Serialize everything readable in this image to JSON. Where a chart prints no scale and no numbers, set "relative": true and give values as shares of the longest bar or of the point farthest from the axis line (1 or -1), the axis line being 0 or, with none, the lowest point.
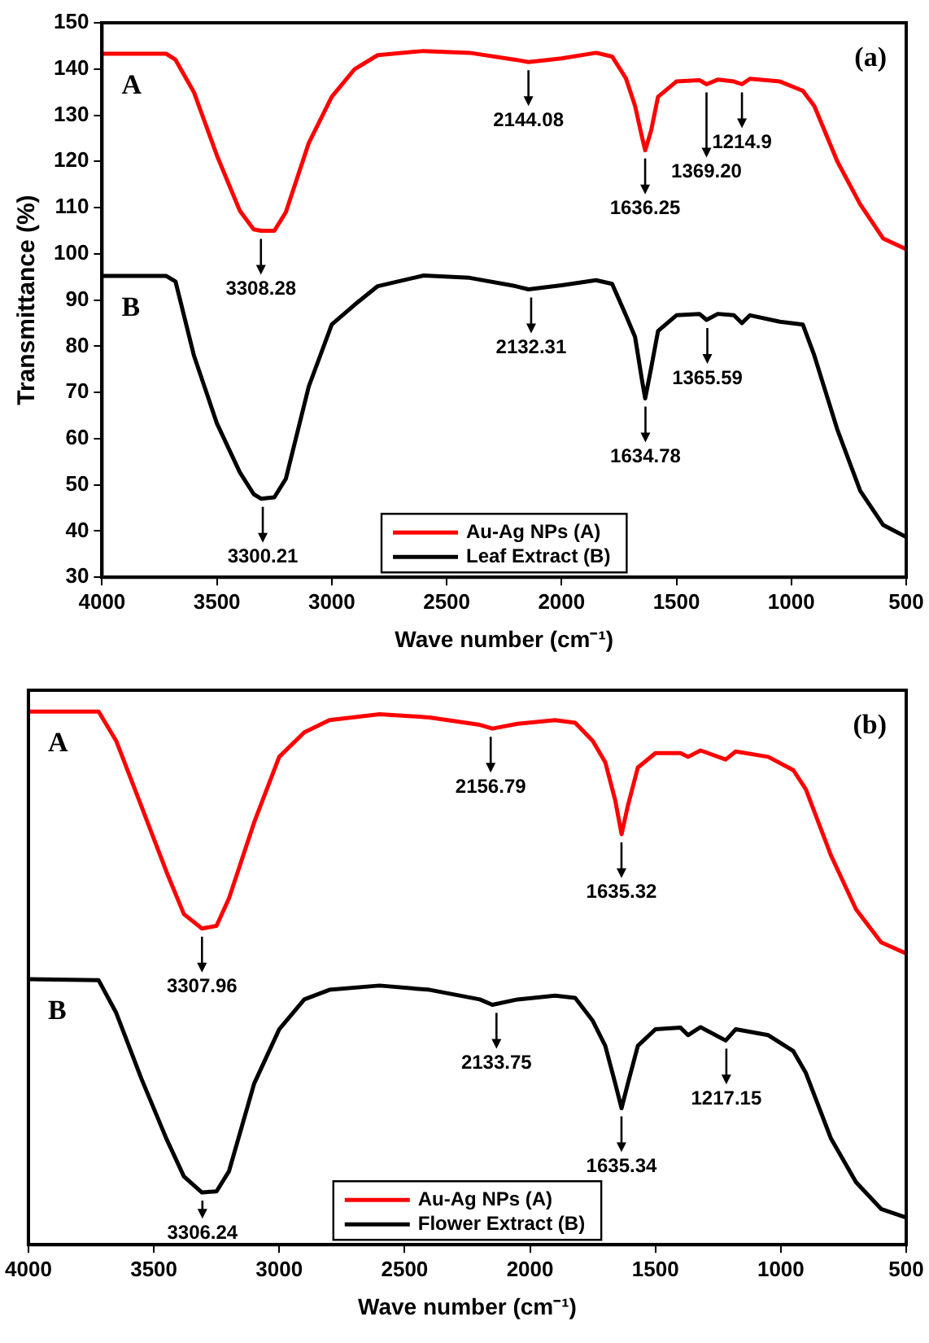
{
  "chart_data": [
    {
      "type": "line",
      "xlabel": "Wave number (cm⁻¹)",
      "ylabel": "Transmittance (%)",
      "xlim": [
        4000,
        500
      ],
      "xticks": [
        4000,
        3500,
        3000,
        2500,
        2000,
        1500,
        1000,
        500
      ],
      "ylim": [
        30,
        150
      ],
      "yticks": [
        30,
        40,
        50,
        60,
        70,
        80,
        90,
        100,
        110,
        120,
        130,
        140,
        150
      ],
      "legend": "bottom",
      "marker": "none",
      "x": [
        4000,
        3720,
        3680,
        3600,
        3500,
        3400,
        3340,
        3308,
        3250,
        3200,
        3100,
        3000,
        2900,
        2800,
        2600,
        2400,
        2200,
        2144,
        2000,
        1850,
        1780,
        1720,
        1680,
        1650,
        1636,
        1610,
        1580,
        1500,
        1400,
        1369,
        1320,
        1250,
        1215,
        1180,
        1050,
        950,
        900,
        800,
        700,
        600,
        500
      ],
      "series": [
        {
          "name": "Au-Ag NPs (A)",
          "color": "#ff0000",
          "values": [
            143.3,
            143.3,
            142,
            135,
            121.3,
            109.3,
            105.3,
            105,
            105,
            109,
            124,
            134,
            140,
            143,
            143.9,
            143.5,
            142,
            141.5,
            142.3,
            143.5,
            142.7,
            138,
            132,
            125.3,
            122.4,
            126.7,
            134,
            137.3,
            137.6,
            136.7,
            137.7,
            137.3,
            136.7,
            137.9,
            137.3,
            135.3,
            132,
            120,
            110.7,
            103.3,
            101
          ]
        },
        {
          "name": "Leaf Extract (B)",
          "color": "#000000",
          "values": [
            95.2,
            95.2,
            94,
            78,
            63.3,
            52.7,
            48,
            47,
            47.3,
            51.3,
            71.3,
            84.7,
            89,
            93,
            95.3,
            94.8,
            93,
            92.3,
            93.2,
            94.3,
            93.5,
            86.7,
            82,
            72.7,
            68.7,
            75.3,
            83.3,
            86.7,
            87,
            85.7,
            87,
            86.7,
            85,
            86.7,
            85.3,
            84.7,
            78,
            62,
            48.7,
            41.3,
            38.7
          ]
        }
      ],
      "annotations": [
        "A",
        "B",
        "(a)",
        {
          "text": "3308.28",
          "x": 3308.28,
          "y": 105
        },
        {
          "text": "2144.08",
          "x": 2144.08,
          "y": 141.5
        },
        {
          "text": "1636.25",
          "x": 1636.25,
          "y": 122.4
        },
        {
          "text": "1214.9",
          "x": 1214.9,
          "y": 136.7
        },
        {
          "text": "1369.20",
          "x": 1369.2,
          "y": 136.7
        },
        {
          "text": "3300.21",
          "x": 3300.21,
          "y": 47
        },
        {
          "text": "2132.31",
          "x": 2132.31,
          "y": 92.3
        },
        {
          "text": "1634.78",
          "x": 1634.78,
          "y": 68.7
        },
        {
          "text": "1365.59",
          "x": 1365.59,
          "y": 85.7
        }
      ]
    },
    {
      "type": "line",
      "relative": true,
      "xlabel": "Wave number (cm⁻¹)",
      "xlim": [
        4000,
        500
      ],
      "xticks": [
        4000,
        3500,
        3000,
        2500,
        2000,
        1500,
        1000,
        500
      ],
      "legend": "bottom",
      "marker": "none",
      "x": [
        4000,
        3720,
        3650,
        3550,
        3450,
        3380,
        3308,
        3250,
        3200,
        3100,
        3000,
        2900,
        2800,
        2600,
        2400,
        2200,
        2150,
        2050,
        1900,
        1820,
        1750,
        1700,
        1660,
        1635,
        1610,
        1570,
        1500,
        1400,
        1370,
        1320,
        1220,
        1180,
        1050,
        950,
        900,
        800,
        700,
        600,
        500
      ],
      "series": [
        {
          "name": "Au-Ag NPs (A)",
          "color": "#ff0000",
          "values": [
            1,
            1,
            0.945,
            0.823,
            0.7,
            0.62,
            0.593,
            0.598,
            0.65,
            0.792,
            0.915,
            0.961,
            0.984,
            0.995,
            0.989,
            0.975,
            0.968,
            0.977,
            0.984,
            0.979,
            0.945,
            0.905,
            0.833,
            0.77,
            0.823,
            0.895,
            0.922,
            0.922,
            0.915,
            0.927,
            0.91,
            0.925,
            0.915,
            0.89,
            0.854,
            0.73,
            0.629,
            0.567,
            0.546
          ]
        },
        {
          "name": "Flower Extract (B)",
          "color": "#000000",
          "values": [
            0.498,
            0.496,
            0.435,
            0.312,
            0.199,
            0.128,
            0.098,
            0.1,
            0.138,
            0.302,
            0.404,
            0.46,
            0.478,
            0.486,
            0.478,
            0.46,
            0.45,
            0.46,
            0.467,
            0.463,
            0.42,
            0.373,
            0.302,
            0.256,
            0.302,
            0.373,
            0.404,
            0.407,
            0.393,
            0.408,
            0.383,
            0.404,
            0.393,
            0.363,
            0.322,
            0.199,
            0.117,
            0.067,
            0.051
          ]
        }
      ],
      "annotations": [
        "A",
        "B",
        "(b)",
        {
          "text": "3307.96",
          "x": 3307.96,
          "y": 0.593
        },
        {
          "text": "2156.79",
          "x": 2156.79,
          "y": 0.968
        },
        {
          "text": "1635.32",
          "x": 1635.32,
          "y": 0.77
        },
        {
          "text": "3306.24",
          "x": 3306.24,
          "y": 0.098
        },
        {
          "text": "2133.75",
          "x": 2133.75,
          "y": 0.45
        },
        {
          "text": "1635.34",
          "x": 1635.34,
          "y": 0.256
        },
        {
          "text": "1217.15",
          "x": 1217.15,
          "y": 0.383
        }
      ]
    }
  ]
}
